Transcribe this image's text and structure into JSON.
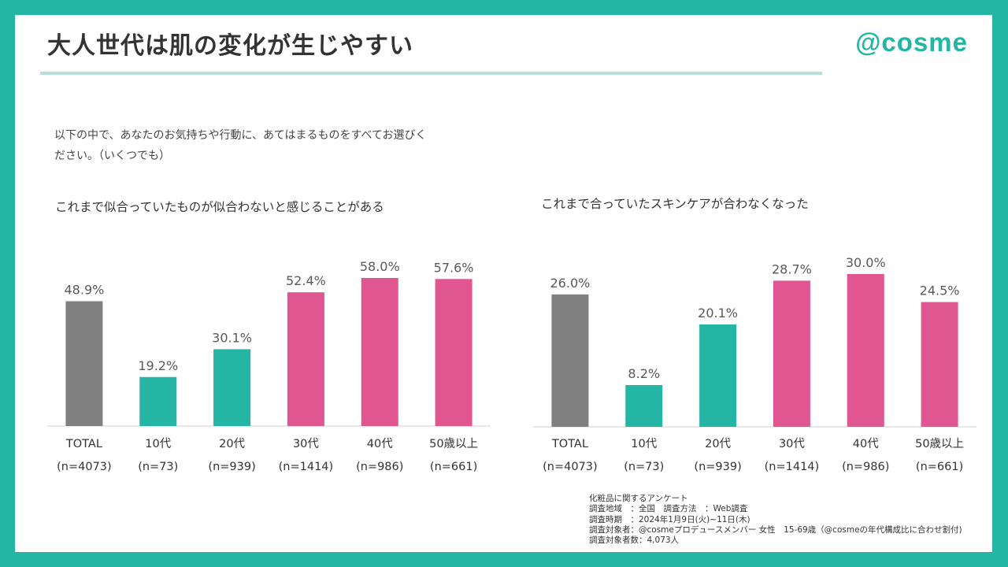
{
  "header": {
    "title": "大人世代は肌の変化が生じやすい",
    "logo_text": "@cosme"
  },
  "question": "以下の中で、あなたのお気持ちや行動に、あてはまるものをすべてお選びください。（いくつでも）",
  "colors": {
    "frame": "#25b5a5",
    "total_bar": "#808080",
    "young_bar": "#25b5a5",
    "older_bar": "#e05690",
    "rule": "#b4dfdb"
  },
  "chart_data": [
    {
      "type": "bar",
      "title": "これまで似合っていたものが似合わないと感じることがある",
      "categories": [
        "TOTAL",
        "10代",
        "20代",
        "30代",
        "40代",
        "50歳以上"
      ],
      "sample_sizes": [
        "(n=4073)",
        "(n=73)",
        "(n=939)",
        "(n=1414)",
        "(n=986)",
        "(n=661)"
      ],
      "values": [
        48.9,
        19.2,
        30.1,
        52.4,
        58.0,
        57.6
      ],
      "value_labels": [
        "48.9%",
        "19.2%",
        "30.1%",
        "52.4%",
        "58.0%",
        "57.6%"
      ],
      "ylim": [
        0,
        58.0
      ],
      "grid": false
    },
    {
      "type": "bar",
      "title": "これまで合っていたスキンケアが合わなくなった",
      "categories": [
        "TOTAL",
        "10代",
        "20代",
        "30代",
        "40代",
        "50歳以上"
      ],
      "sample_sizes": [
        "(n=4073)",
        "(n=73)",
        "(n=939)",
        "(n=1414)",
        "(n=986)",
        "(n=661)"
      ],
      "values": [
        26.0,
        8.2,
        20.1,
        28.7,
        30.0,
        24.5
      ],
      "value_labels": [
        "26.0%",
        "8.2%",
        "20.1%",
        "28.7%",
        "30.0%",
        "24.5%"
      ],
      "ylim": [
        0,
        30.0
      ],
      "grid": false
    }
  ],
  "survey": {
    "lines": [
      "化粧品に関するアンケート",
      "調査地域　：全国　調査方法　：Web調査",
      "調査時期　：2024年1月9日(火)~11日(木)",
      "調査対象者：@cosmeプロデュースメンバー 女性　15-69歳（@cosmeの年代構成比に合わせ割付)",
      "調査対象者数：4,073人"
    ]
  }
}
